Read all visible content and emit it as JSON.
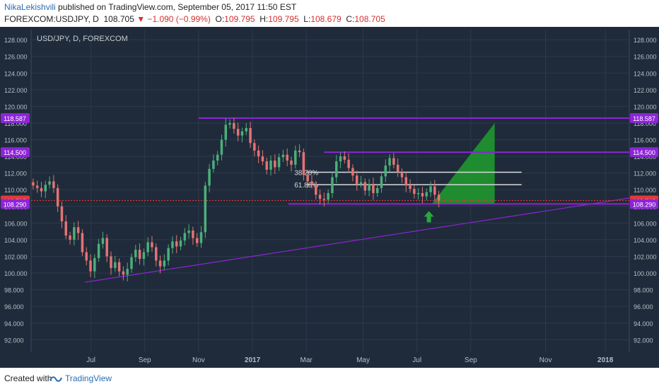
{
  "header": {
    "author": "NikaLekishvili",
    "published": "published on TradingView.com, September 05, 2017 11:50 EST",
    "symbol": "FOREXCOM:USDJPY, D",
    "last": "108.705",
    "change": "▼ −1.090 (−0.99%)",
    "o_label": "O:",
    "o_value": "109.795",
    "h_label": "H:",
    "h_value": "109.795",
    "l_label": "L:",
    "l_value": "108.679",
    "c_label": "C:",
    "c_value": "108.705"
  },
  "footer": {
    "created_with": "Created with",
    "brand": "TradingView"
  },
  "colors": {
    "background": "#1f2b3a",
    "grid": "#2b3a4b",
    "up": "#4caf7a",
    "down": "#e57373",
    "purple": "#8e24d8",
    "green_zone": "#1f9e2e",
    "arrow": "#27a83a",
    "fib_line": "#d9d9d9",
    "price_badge": "#e53935"
  },
  "chart_data": {
    "type": "candlestick",
    "instrument_label": "USD/JPY, D, FOREXCOM",
    "ylim": [
      90.5,
      129.2
    ],
    "y_ticks": [
      "92.000",
      "94.000",
      "96.000",
      "98.000",
      "100.000",
      "102.000",
      "104.000",
      "106.000",
      "108.000",
      "110.000",
      "112.000",
      "114.000",
      "116.000",
      "118.000",
      "120.000",
      "122.000",
      "124.000",
      "126.000",
      "128.000"
    ],
    "x_ticks": [
      "Jul",
      "Sep",
      "Nov",
      "2017",
      "Mar",
      "May",
      "Jul",
      "Sep",
      "Nov",
      "2018"
    ],
    "x_tick_pos": [
      0.1,
      0.19,
      0.28,
      0.37,
      0.46,
      0.555,
      0.645,
      0.735,
      0.86,
      0.96
    ],
    "series_close": [
      110.5,
      110.2,
      109.8,
      110.6,
      111.0,
      110.2,
      108.0,
      106.2,
      104.5,
      104.0,
      105.5,
      104.8,
      102.5,
      101.5,
      100.2,
      101.8,
      103.5,
      104.2,
      102.0,
      100.6,
      101.3,
      100.2,
      99.8,
      100.5,
      101.9,
      102.8,
      101.7,
      102.5,
      103.7,
      103.1,
      101.5,
      100.8,
      101.5,
      103.0,
      103.8,
      103.2,
      103.9,
      104.8,
      105.1,
      104.2,
      103.6,
      104.9,
      110.5,
      112.5,
      113.5,
      114.2,
      116.0,
      117.8,
      118.0,
      117.3,
      116.5,
      117.0,
      117.4,
      115.6,
      114.7,
      114.0,
      113.4,
      112.4,
      113.5,
      112.7,
      113.9,
      114.2,
      113.5,
      113.0,
      114.7,
      114.5,
      111.8,
      111.0,
      110.6,
      109.4,
      108.9,
      108.8,
      109.6,
      111.5,
      113.4,
      114.0,
      113.6,
      112.6,
      111.7,
      110.7,
      110.9,
      109.9,
      110.7,
      109.6,
      110.2,
      111.6,
      112.9,
      113.8,
      113.0,
      112.1,
      111.5,
      110.5,
      110.1,
      109.5,
      109.6,
      109.2,
      109.7,
      110.4,
      109.4,
      108.7
    ],
    "annotations": {
      "resistance_1": 118.587,
      "resistance_2": 114.5,
      "support": 108.29,
      "last_price": 108.705,
      "fib_levels": [
        {
          "label": "38.20%",
          "value": 112.1
        },
        {
          "label": "61.80%",
          "value": 110.6
        }
      ],
      "badges": [
        "118.587",
        "114.500",
        "108.705",
        "108.290"
      ]
    }
  }
}
